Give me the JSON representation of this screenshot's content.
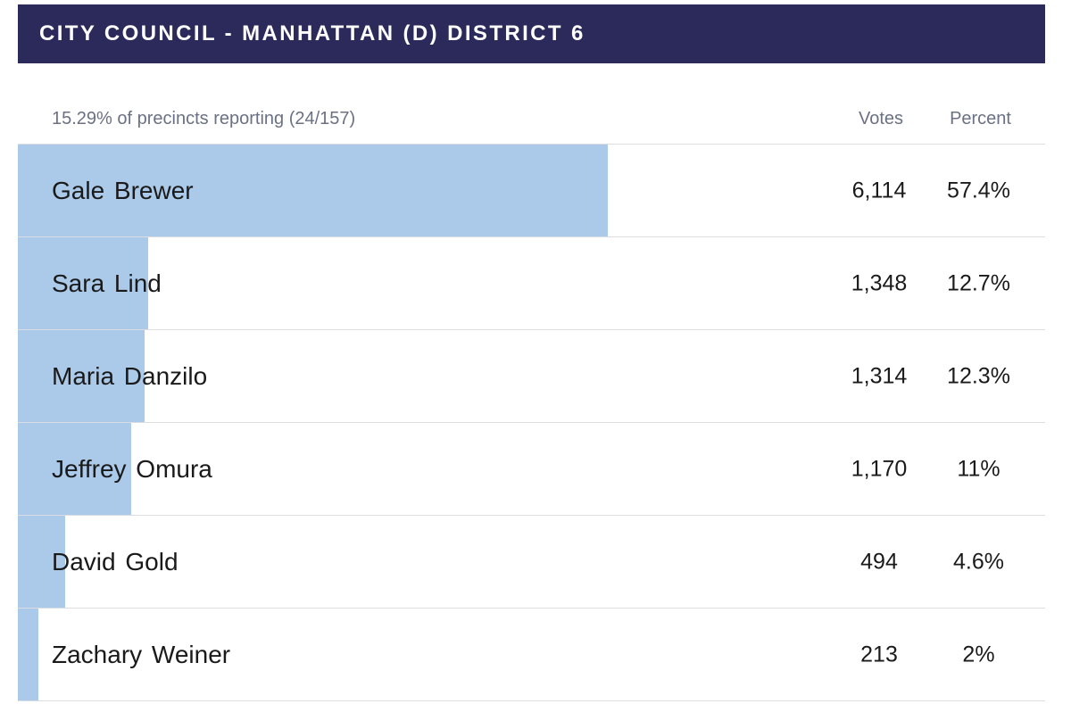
{
  "header": {
    "title": "CITY COUNCIL - MANHATTAN (D) DISTRICT 6"
  },
  "table": {
    "reporting_text": "15.29% of precincts reporting (24/157)",
    "votes_header": "Votes",
    "percent_header": "Percent"
  },
  "colors": {
    "header_bg": "#2b2a5b",
    "bar": "#abc9e9",
    "muted_text": "#6b7184",
    "divider": "#dcdde3"
  },
  "chart_data": {
    "type": "bar",
    "title": "CITY COUNCIL - MANHATTAN (D) DISTRICT 6",
    "categories": [
      "Gale Brewer",
      "Sara Lind",
      "Maria Danzilo",
      "Jeffrey Omura",
      "David Gold",
      "Zachary Weiner"
    ],
    "values": [
      57.4,
      12.7,
      12.3,
      11,
      4.6,
      2
    ],
    "votes": [
      6114,
      1348,
      1314,
      1170,
      494,
      213
    ],
    "rows": [
      {
        "name": "Gale Brewer",
        "votes": "6,114",
        "percent": "57.4%",
        "pct_value": 57.4
      },
      {
        "name": "Sara Lind",
        "votes": "1,348",
        "percent": "12.7%",
        "pct_value": 12.7
      },
      {
        "name": "Maria Danzilo",
        "votes": "1,314",
        "percent": "12.3%",
        "pct_value": 12.3
      },
      {
        "name": "Jeffrey Omura",
        "votes": "1,170",
        "percent": "11%",
        "pct_value": 11
      },
      {
        "name": "David Gold",
        "votes": "494",
        "percent": "4.6%",
        "pct_value": 4.6
      },
      {
        "name": "Zachary Weiner",
        "votes": "213",
        "percent": "2%",
        "pct_value": 2
      }
    ]
  }
}
